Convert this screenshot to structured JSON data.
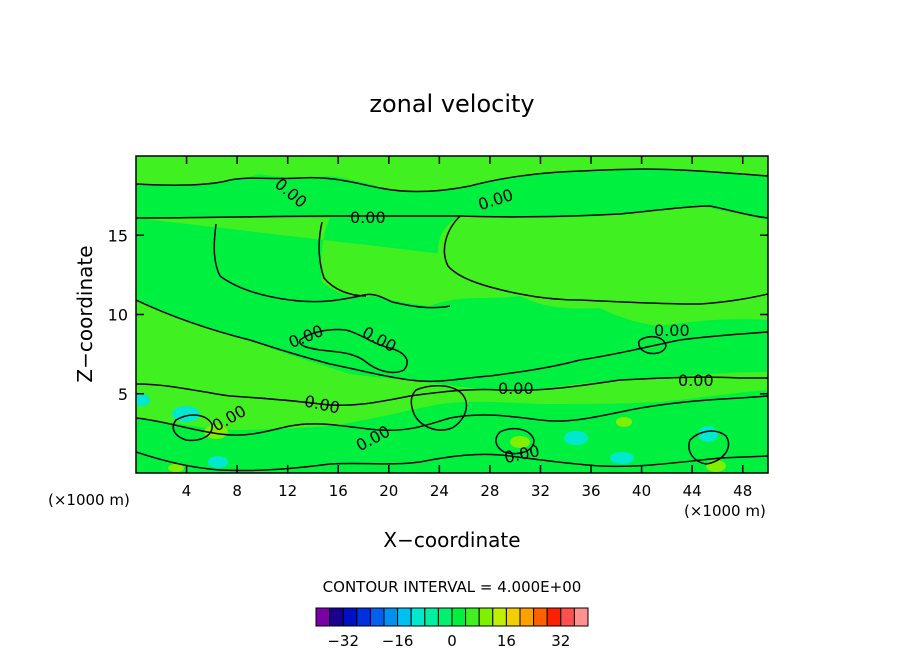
{
  "chart_data": {
    "type": "contour",
    "title": "zonal velocity",
    "xlabel": "X−coordinate",
    "ylabel": "Z−coordinate",
    "x_unit": "(×1000 m)",
    "xlim": [
      0,
      50
    ],
    "ylim": [
      0,
      20
    ],
    "x_ticks": [
      4,
      8,
      12,
      16,
      20,
      24,
      28,
      32,
      36,
      40,
      44,
      48
    ],
    "y_ticks": [
      5,
      10,
      15
    ],
    "contour_interval_text": "CONTOUR INTERVAL = 4.000E+00",
    "contour_label": "0.00",
    "colorbar": {
      "tick_values": [
        -32,
        -16,
        0,
        16,
        32
      ],
      "tick_labels": [
        "−32",
        "−16",
        "0",
        "16",
        "32"
      ],
      "bins": [
        -36,
        -32,
        -28,
        -24,
        -20,
        -16,
        -12,
        -8,
        -4,
        0,
        4,
        8,
        12,
        16,
        20,
        24,
        28,
        32,
        36
      ],
      "colors": [
        "#7a00a8",
        "#1a0090",
        "#0010c0",
        "#0030e0",
        "#0060f0",
        "#0090f0",
        "#00c0f0",
        "#00e8d0",
        "#00f0a0",
        "#00f070",
        "#00f040",
        "#40f020",
        "#80f000",
        "#c0f000",
        "#f0d000",
        "#ffa000",
        "#ff6000",
        "#ff2000",
        "#ff5050",
        "#ff9090"
      ]
    },
    "grid": false
  }
}
